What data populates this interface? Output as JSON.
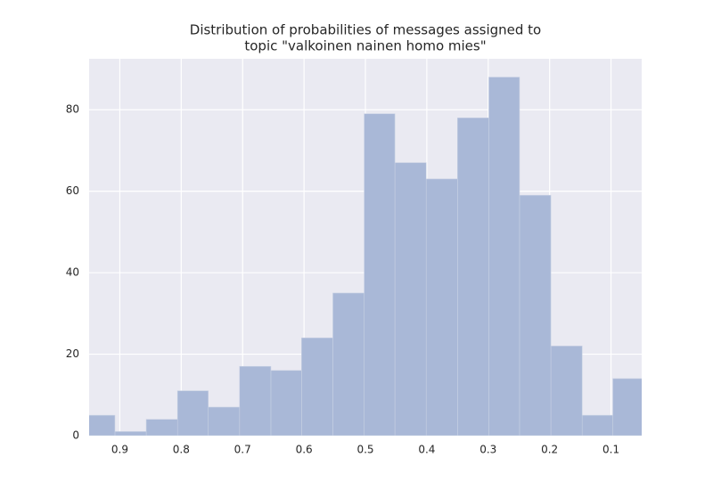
{
  "chart_data": {
    "type": "histogram",
    "title": [
      "Distribution of probabilities of messages assigned to",
      "topic \"valkoinen nainen homo mies\""
    ],
    "bins": [
      0.046,
      0.097,
      0.147,
      0.198,
      0.249,
      0.299,
      0.35,
      0.401,
      0.452,
      0.502,
      0.553,
      0.604,
      0.654,
      0.705,
      0.756,
      0.806,
      0.857,
      0.908,
      0.958
    ],
    "values": [
      14,
      5,
      22,
      59,
      88,
      78,
      63,
      67,
      79,
      35,
      24,
      16,
      17,
      7,
      11,
      4,
      1,
      5
    ],
    "color": "#a9b8d7",
    "xlim": [
      0.95,
      0.05
    ],
    "xticks": [
      0.9,
      0.8,
      0.7,
      0.6,
      0.5,
      0.4,
      0.3,
      0.2,
      0.1
    ],
    "ylim": [
      0,
      92.5
    ],
    "yticks": [
      0,
      20,
      40,
      60,
      80
    ],
    "grid": true
  }
}
